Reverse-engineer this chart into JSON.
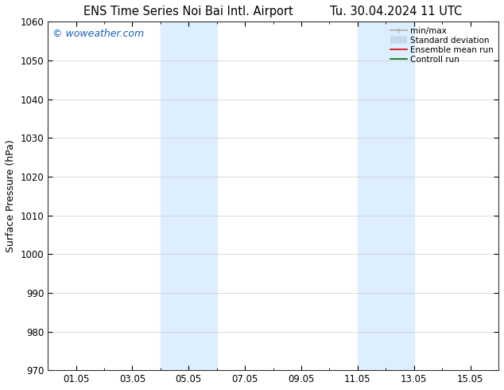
{
  "title_left": "ENS Time Series Noi Bai Intl. Airport",
  "title_right": "Tu. 30.04.2024 11 UTC",
  "ylabel": "Surface Pressure (hPa)",
  "ylim": [
    970,
    1060
  ],
  "yticks": [
    970,
    980,
    990,
    1000,
    1010,
    1020,
    1030,
    1040,
    1050,
    1060
  ],
  "x_tick_labels": [
    "01.05",
    "03.05",
    "05.05",
    "07.05",
    "09.05",
    "11.05",
    "13.05",
    "15.05"
  ],
  "x_tick_positions": [
    1,
    3,
    5,
    7,
    9,
    11,
    13,
    15
  ],
  "xlim": [
    0.0,
    16.0
  ],
  "shaded_regions": [
    {
      "x_start": 4.0,
      "x_end": 6.0
    },
    {
      "x_start": 11.0,
      "x_end": 13.0
    }
  ],
  "shaded_color": "#ddeeff",
  "watermark_text": "© woweather.com",
  "watermark_color": "#1a5fb4",
  "legend_entries": [
    {
      "label": "min/max",
      "color": "#aaaaaa",
      "lw": 1.2
    },
    {
      "label": "Standard deviation",
      "color": "#c8d8ec",
      "lw": 7
    },
    {
      "label": "Ensemble mean run",
      "color": "#dd0000",
      "lw": 1.2
    },
    {
      "label": "Controll run",
      "color": "#006600",
      "lw": 1.2
    }
  ],
  "bg_color": "#ffffff",
  "grid_color": "#cccccc",
  "title_fontsize": 10.5,
  "tick_fontsize": 8.5,
  "ylabel_fontsize": 9,
  "watermark_fontsize": 9
}
